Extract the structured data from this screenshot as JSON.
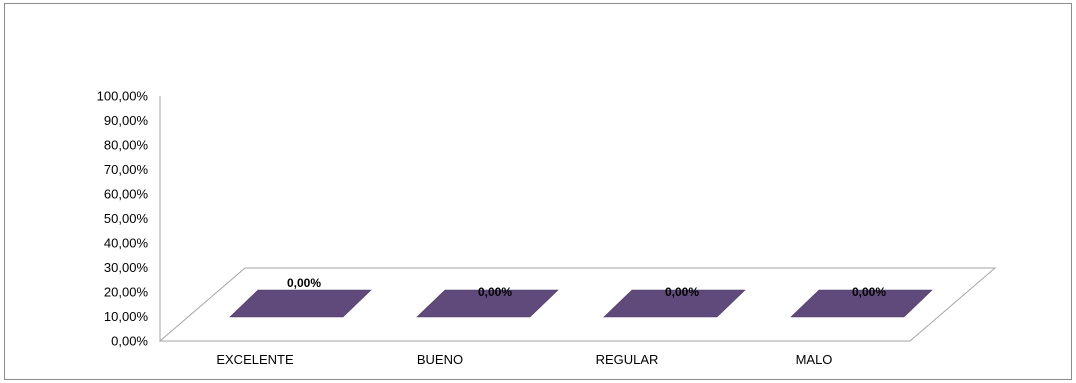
{
  "chart_data": {
    "type": "bar",
    "categories": [
      "EXCELENTE",
      "BUENO",
      "REGULAR",
      "MALO"
    ],
    "values": [
      0,
      0,
      0,
      0
    ],
    "data_labels": [
      "0,00%",
      "0,00%",
      "0,00%",
      "0,00%"
    ],
    "ylim": [
      0,
      100
    ],
    "yticks": [
      "0,00%",
      "10,00%",
      "20,00%",
      "30,00%",
      "40,00%",
      "50,00%",
      "60,00%",
      "70,00%",
      "80,00%",
      "90,00%",
      "100,00%"
    ],
    "grid": false,
    "legend": "none",
    "style": "3d",
    "bar_color": "#604A7B",
    "axis_color": "#A6A6A6"
  }
}
